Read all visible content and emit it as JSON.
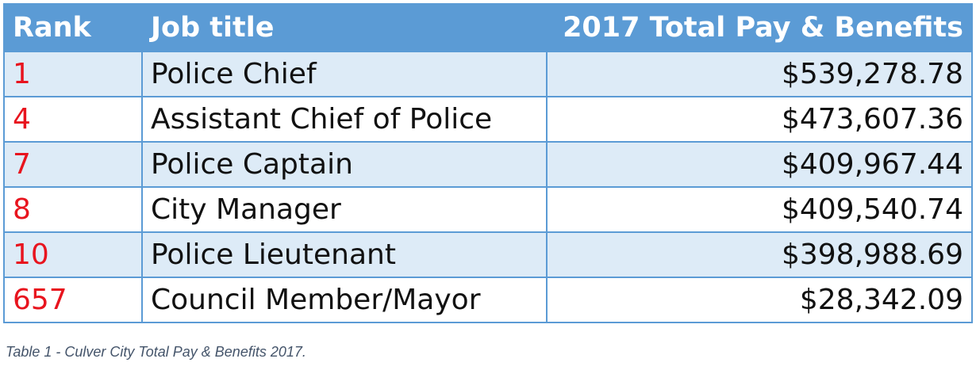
{
  "table": {
    "headers": {
      "rank": "Rank",
      "job_title": "Job title",
      "pay": "2017 Total Pay & Benefits"
    },
    "rows": [
      {
        "rank": "1",
        "job_title": "Police Chief",
        "pay": "$539,278.78"
      },
      {
        "rank": "4",
        "job_title": "Assistant Chief of Police",
        "pay": "$473,607.36"
      },
      {
        "rank": "7",
        "job_title": "Police Captain",
        "pay": "$409,967.44"
      },
      {
        "rank": "8",
        "job_title": "City Manager",
        "pay": "$409,540.74"
      },
      {
        "rank": "10",
        "job_title": "Police Lieutenant",
        "pay": "$398,988.69"
      },
      {
        "rank": "657",
        "job_title": "Council Member/Mayor",
        "pay": "$28,342.09"
      }
    ]
  },
  "caption": "Table 1 - Culver City Total Pay & Benefits 2017.",
  "colors": {
    "header_bg": "#5b9bd5",
    "band_bg": "#ddebf7",
    "rank_text": "#e8141e",
    "caption_text": "#44546a"
  }
}
